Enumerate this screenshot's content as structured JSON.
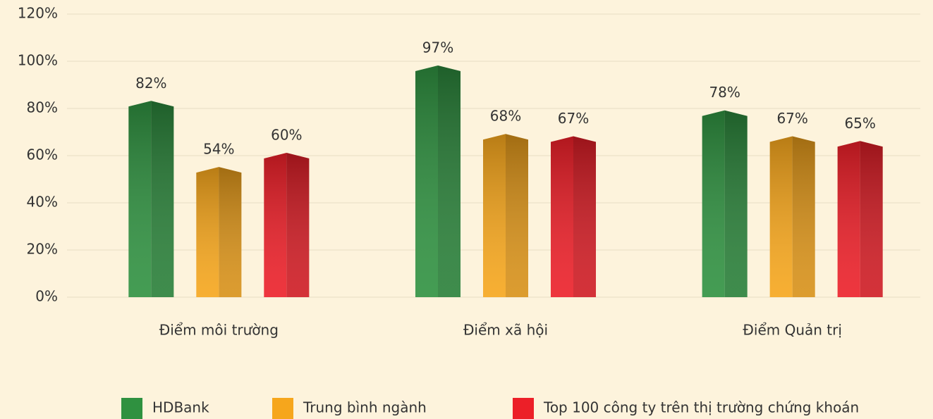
{
  "chart_data": {
    "type": "bar",
    "categories": [
      "Điểm môi trường",
      "Điểm xã hội",
      "Điểm Quản trị"
    ],
    "series": [
      {
        "name": "HDBank",
        "color": "#2f9140",
        "values": [
          82,
          97,
          78
        ],
        "value_labels": [
          "82%",
          "97%",
          "78%"
        ]
      },
      {
        "name": "Trung bình ngành",
        "color": "#f6a61c",
        "values": [
          54,
          68,
          67
        ],
        "value_labels": [
          "54%",
          "68%",
          "67%"
        ]
      },
      {
        "name": "Top 100 công ty trên thị trường chứng khoán",
        "color": "#ec1f28",
        "values": [
          60,
          67,
          65
        ],
        "value_labels": [
          "60%",
          "67%",
          "65%"
        ]
      }
    ],
    "ylim": [
      0,
      120
    ],
    "yticks": [
      {
        "value": 0,
        "label": "0%"
      },
      {
        "value": 20,
        "label": "20%"
      },
      {
        "value": 40,
        "label": "40%"
      },
      {
        "value": 60,
        "label": "60%"
      },
      {
        "value": 80,
        "label": "80%"
      },
      {
        "value": 100,
        "label": "100%"
      },
      {
        "value": 120,
        "label": "120%"
      }
    ],
    "grid": true
  }
}
